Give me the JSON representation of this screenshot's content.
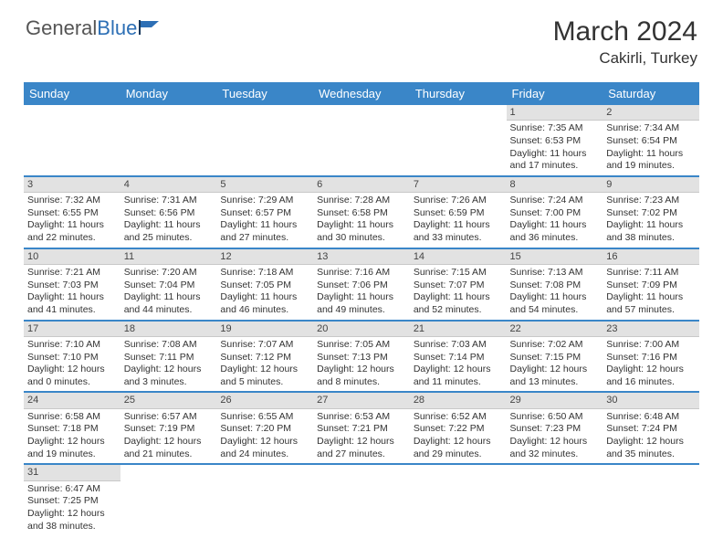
{
  "logo": {
    "first": "General",
    "second": "Blue"
  },
  "title": "March 2024",
  "location": "Cakirli, Turkey",
  "colors": {
    "header_bg": "#3a86c8",
    "header_text": "#ffffff",
    "daynum_bg": "#e2e2e2",
    "row_border": "#3a86c8",
    "logo_accent": "#2d6fb5",
    "text": "#333333",
    "background": "#ffffff"
  },
  "dayHeaders": [
    "Sunday",
    "Monday",
    "Tuesday",
    "Wednesday",
    "Thursday",
    "Friday",
    "Saturday"
  ],
  "weeks": [
    [
      null,
      null,
      null,
      null,
      null,
      {
        "n": "1",
        "sr": "7:35 AM",
        "ss": "6:53 PM",
        "dl": "11 hours and 17 minutes."
      },
      {
        "n": "2",
        "sr": "7:34 AM",
        "ss": "6:54 PM",
        "dl": "11 hours and 19 minutes."
      }
    ],
    [
      {
        "n": "3",
        "sr": "7:32 AM",
        "ss": "6:55 PM",
        "dl": "11 hours and 22 minutes."
      },
      {
        "n": "4",
        "sr": "7:31 AM",
        "ss": "6:56 PM",
        "dl": "11 hours and 25 minutes."
      },
      {
        "n": "5",
        "sr": "7:29 AM",
        "ss": "6:57 PM",
        "dl": "11 hours and 27 minutes."
      },
      {
        "n": "6",
        "sr": "7:28 AM",
        "ss": "6:58 PM",
        "dl": "11 hours and 30 minutes."
      },
      {
        "n": "7",
        "sr": "7:26 AM",
        "ss": "6:59 PM",
        "dl": "11 hours and 33 minutes."
      },
      {
        "n": "8",
        "sr": "7:24 AM",
        "ss": "7:00 PM",
        "dl": "11 hours and 36 minutes."
      },
      {
        "n": "9",
        "sr": "7:23 AM",
        "ss": "7:02 PM",
        "dl": "11 hours and 38 minutes."
      }
    ],
    [
      {
        "n": "10",
        "sr": "7:21 AM",
        "ss": "7:03 PM",
        "dl": "11 hours and 41 minutes."
      },
      {
        "n": "11",
        "sr": "7:20 AM",
        "ss": "7:04 PM",
        "dl": "11 hours and 44 minutes."
      },
      {
        "n": "12",
        "sr": "7:18 AM",
        "ss": "7:05 PM",
        "dl": "11 hours and 46 minutes."
      },
      {
        "n": "13",
        "sr": "7:16 AM",
        "ss": "7:06 PM",
        "dl": "11 hours and 49 minutes."
      },
      {
        "n": "14",
        "sr": "7:15 AM",
        "ss": "7:07 PM",
        "dl": "11 hours and 52 minutes."
      },
      {
        "n": "15",
        "sr": "7:13 AM",
        "ss": "7:08 PM",
        "dl": "11 hours and 54 minutes."
      },
      {
        "n": "16",
        "sr": "7:11 AM",
        "ss": "7:09 PM",
        "dl": "11 hours and 57 minutes."
      }
    ],
    [
      {
        "n": "17",
        "sr": "7:10 AM",
        "ss": "7:10 PM",
        "dl": "12 hours and 0 minutes."
      },
      {
        "n": "18",
        "sr": "7:08 AM",
        "ss": "7:11 PM",
        "dl": "12 hours and 3 minutes."
      },
      {
        "n": "19",
        "sr": "7:07 AM",
        "ss": "7:12 PM",
        "dl": "12 hours and 5 minutes."
      },
      {
        "n": "20",
        "sr": "7:05 AM",
        "ss": "7:13 PM",
        "dl": "12 hours and 8 minutes."
      },
      {
        "n": "21",
        "sr": "7:03 AM",
        "ss": "7:14 PM",
        "dl": "12 hours and 11 minutes."
      },
      {
        "n": "22",
        "sr": "7:02 AM",
        "ss": "7:15 PM",
        "dl": "12 hours and 13 minutes."
      },
      {
        "n": "23",
        "sr": "7:00 AM",
        "ss": "7:16 PM",
        "dl": "12 hours and 16 minutes."
      }
    ],
    [
      {
        "n": "24",
        "sr": "6:58 AM",
        "ss": "7:18 PM",
        "dl": "12 hours and 19 minutes."
      },
      {
        "n": "25",
        "sr": "6:57 AM",
        "ss": "7:19 PM",
        "dl": "12 hours and 21 minutes."
      },
      {
        "n": "26",
        "sr": "6:55 AM",
        "ss": "7:20 PM",
        "dl": "12 hours and 24 minutes."
      },
      {
        "n": "27",
        "sr": "6:53 AM",
        "ss": "7:21 PM",
        "dl": "12 hours and 27 minutes."
      },
      {
        "n": "28",
        "sr": "6:52 AM",
        "ss": "7:22 PM",
        "dl": "12 hours and 29 minutes."
      },
      {
        "n": "29",
        "sr": "6:50 AM",
        "ss": "7:23 PM",
        "dl": "12 hours and 32 minutes."
      },
      {
        "n": "30",
        "sr": "6:48 AM",
        "ss": "7:24 PM",
        "dl": "12 hours and 35 minutes."
      }
    ],
    [
      {
        "n": "31",
        "sr": "6:47 AM",
        "ss": "7:25 PM",
        "dl": "12 hours and 38 minutes."
      },
      null,
      null,
      null,
      null,
      null,
      null
    ]
  ],
  "labels": {
    "sunrise": "Sunrise: ",
    "sunset": "Sunset: ",
    "daylight": "Daylight: "
  }
}
